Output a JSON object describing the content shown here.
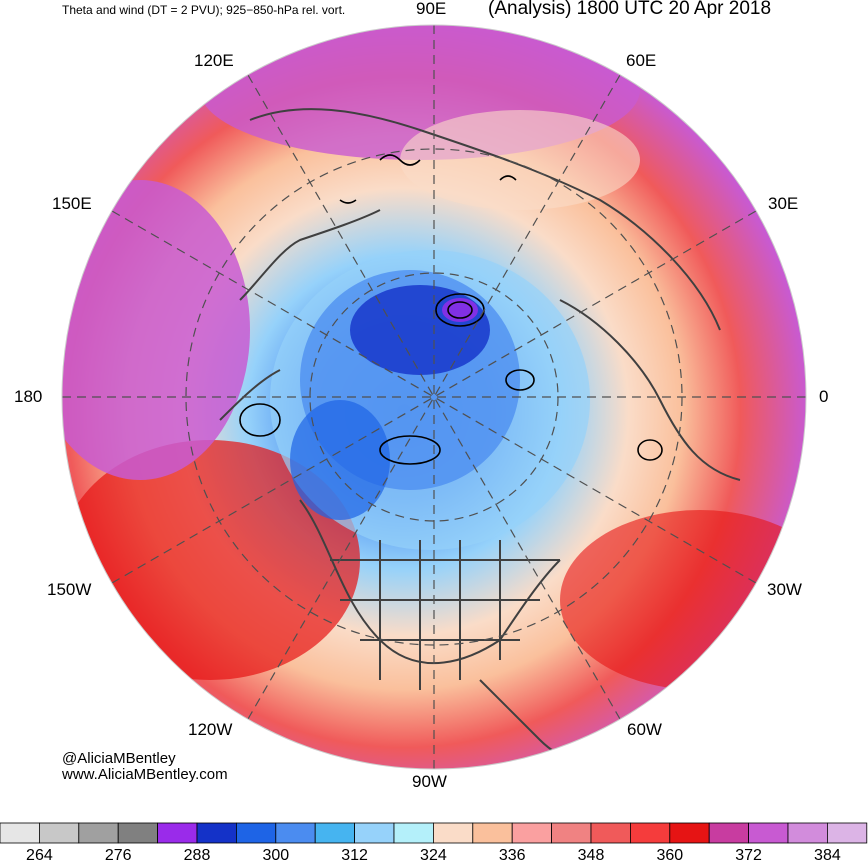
{
  "header": {
    "title_left": "Theta and wind (DT = 2 PVU); 925−850-hPa rel. vort.",
    "title_right": "(Analysis) 1800 UTC 20 Apr 2018"
  },
  "longitude_labels": {
    "lon_90e": "90E",
    "lon_60e": "60E",
    "lon_120e": "120E",
    "lon_30e": "30E",
    "lon_150e": "150E",
    "lon_180": "180",
    "lon_0": "0",
    "lon_150w": "150W",
    "lon_30w": "30W",
    "lon_120w": "120W",
    "lon_60w": "60W",
    "lon_90w": "90W"
  },
  "credits": {
    "handle": "@AliciaMBentley",
    "website": "www.AliciaMBentley.com"
  },
  "colorbar": {
    "colors": [
      "#e6e6e6",
      "#c8c8c8",
      "#a0a0a0",
      "#808080",
      "#9a2bea",
      "#1432c8",
      "#1e64e6",
      "#4b8cf0",
      "#46b4f0",
      "#96d2fa",
      "#b4f0fa",
      "#fadcc8",
      "#fac09c",
      "#faa0a0",
      "#f08282",
      "#f05a5a",
      "#f53c3c",
      "#e61414",
      "#c83ca0",
      "#c85ad2",
      "#d28cdc",
      "#dcb4e6"
    ],
    "labels": [
      "264",
      "276",
      "288",
      "300",
      "312",
      "324",
      "336",
      "348",
      "360",
      "372",
      "384"
    ]
  },
  "map_colors": {
    "warm_outer": "#c85ad2",
    "warm_mid": "#f05a5a",
    "red_core": "#e61414",
    "mid_ring": "#fac09c",
    "cold_light": "#96d2fa",
    "cold_mid": "#4b8cf0",
    "cold_core": "#1e64e6",
    "coast": "#404040"
  }
}
